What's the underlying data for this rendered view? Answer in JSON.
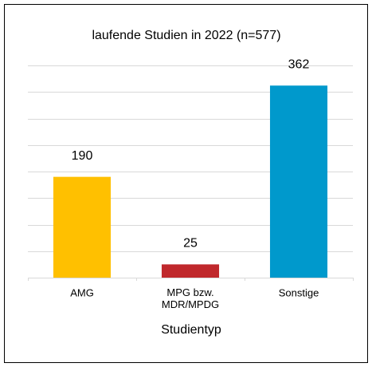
{
  "chart_data": {
    "type": "bar",
    "title": "laufende Studien in 2022 (n=577)",
    "categories": [
      "AMG",
      "MPG bzw.\nMDR/MPDG",
      "Sonstige"
    ],
    "values": [
      190,
      25,
      362
    ],
    "colors": [
      "#ffc000",
      "#c0282c",
      "#0099cc"
    ],
    "xlabel": "Studientyp",
    "ylim": [
      0,
      400
    ],
    "yticks": [
      0,
      50,
      100,
      150,
      200,
      250,
      300,
      350,
      400
    ],
    "grid": true
  }
}
